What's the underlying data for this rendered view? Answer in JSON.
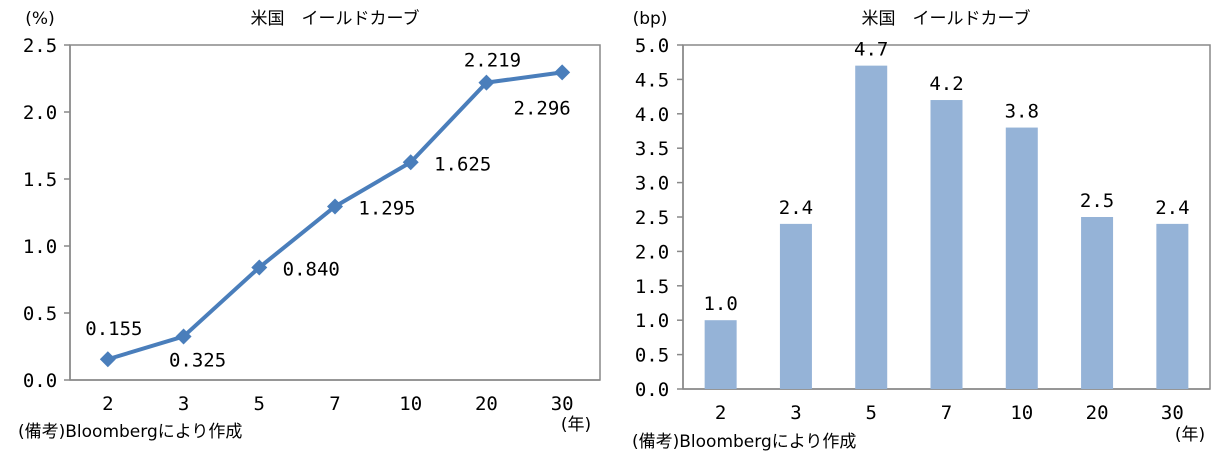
{
  "chart_data": [
    {
      "type": "line",
      "title": "米国　イールドカーブ",
      "ylabel": "(%)",
      "xlabel": "(年)",
      "note": "(備考)Bloombergにより作成",
      "categories": [
        "2",
        "3",
        "5",
        "7",
        "10",
        "20",
        "30"
      ],
      "values": [
        0.155,
        0.325,
        0.84,
        1.295,
        1.625,
        2.219,
        2.296
      ],
      "data_labels": [
        "0.155",
        "0.325",
        "0.840",
        "1.295",
        "1.625",
        "2.219",
        "2.296"
      ],
      "ylim": [
        0,
        2.5
      ],
      "yticks": [
        "0.0",
        "0.5",
        "1.0",
        "1.5",
        "2.0",
        "2.5"
      ],
      "grid": false,
      "marker": "diamond",
      "color": "#4a7ebb"
    },
    {
      "type": "bar",
      "title": "米国　イールドカーブ",
      "ylabel": "(bp)",
      "xlabel": "(年)",
      "note": "(備考)Bloombergにより作成",
      "categories": [
        "2",
        "3",
        "5",
        "7",
        "10",
        "20",
        "30"
      ],
      "values": [
        1.0,
        2.4,
        4.7,
        4.2,
        3.8,
        2.5,
        2.4
      ],
      "data_labels": [
        "1.0",
        "2.4",
        "4.7",
        "4.2",
        "3.8",
        "2.5",
        "2.4"
      ],
      "ylim": [
        0,
        5.0
      ],
      "yticks": [
        "0.0",
        "0.5",
        "1.0",
        "1.5",
        "2.0",
        "2.5",
        "3.0",
        "3.5",
        "4.0",
        "4.5",
        "5.0"
      ],
      "grid": false,
      "color": "#95b3d7"
    }
  ]
}
